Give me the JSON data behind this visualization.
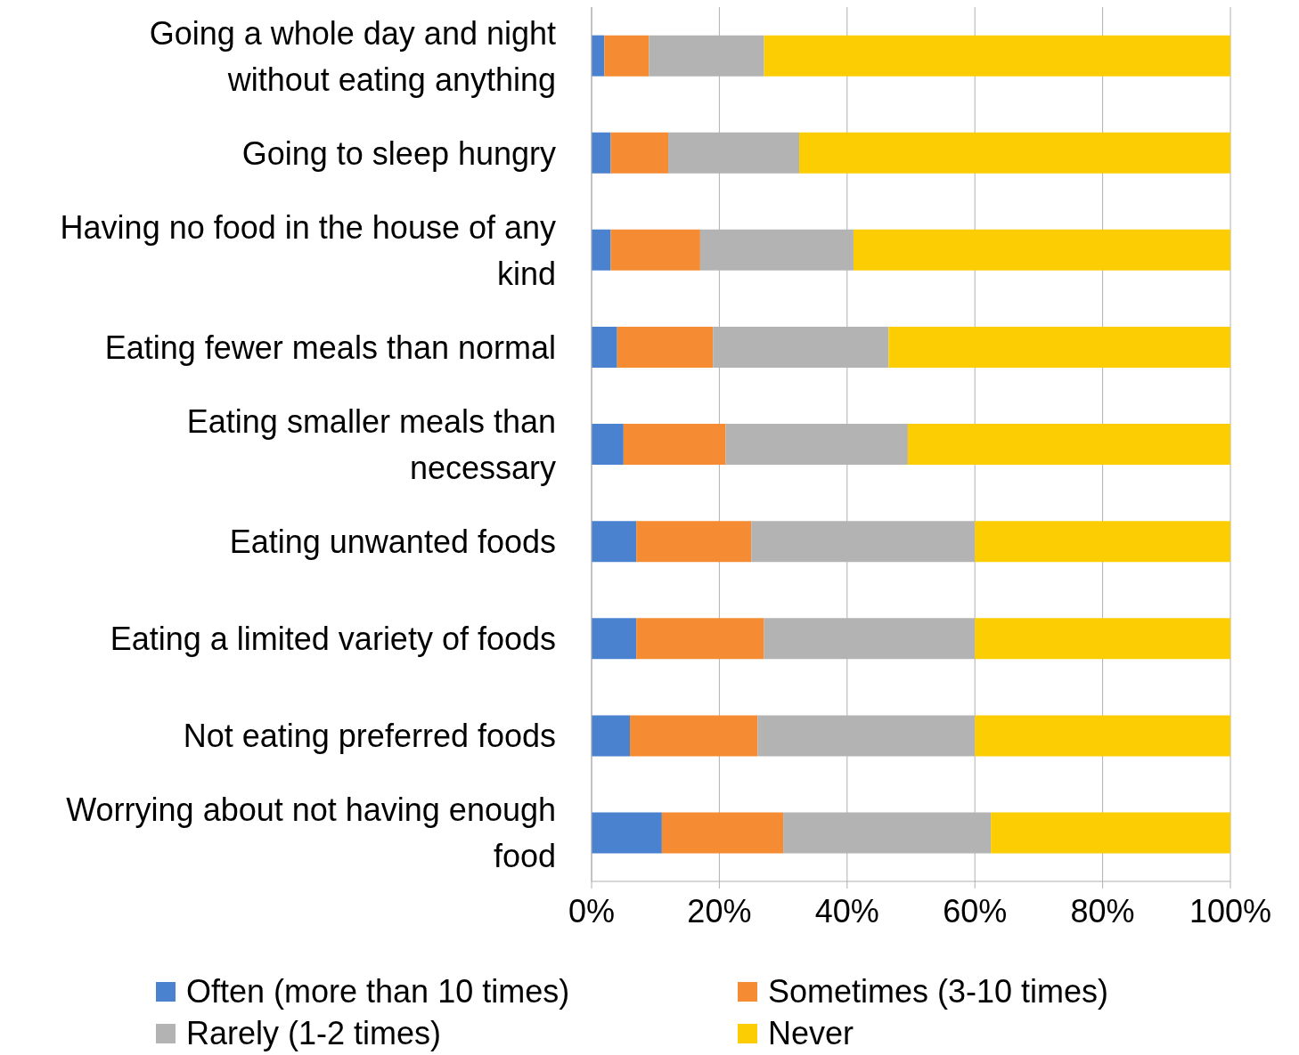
{
  "chart_data": {
    "type": "bar",
    "orientation": "horizontal",
    "stacked": true,
    "categories": [
      "Going a whole day and night without eating anything",
      "Going to sleep hungry",
      "Having no food in the house of any kind",
      "Eating fewer meals than normal",
      "Eating smaller meals than necessary",
      "Eating unwanted foods",
      "Eating a limited variety of foods",
      "Not eating preferred foods",
      "Worrying about not having enough food"
    ],
    "series": [
      {
        "name": "Often (more than 10 times)",
        "color": "#4a82d0",
        "values": [
          2,
          3,
          3,
          4,
          5,
          7,
          7,
          6,
          11
        ]
      },
      {
        "name": "Sometimes (3-10 times)",
        "color": "#f58b32",
        "values": [
          7,
          9,
          14,
          15,
          16,
          18,
          20,
          20,
          19
        ]
      },
      {
        "name": "Rarely (1-2 times)",
        "color": "#b3b3b3",
        "values": [
          18,
          20.5,
          24,
          27.5,
          28.5,
          35,
          33,
          34,
          32.5
        ]
      },
      {
        "name": "Never",
        "color": "#fccd03",
        "values": [
          73,
          67.5,
          59,
          53.5,
          50.5,
          40,
          40,
          40,
          37.5
        ]
      }
    ],
    "xlim": [
      0,
      100
    ],
    "xticks": [
      {
        "value": 0,
        "label": "0%"
      },
      {
        "value": 20,
        "label": "20%"
      },
      {
        "value": 40,
        "label": "40%"
      },
      {
        "value": 60,
        "label": "60%"
      },
      {
        "value": 80,
        "label": "80%"
      },
      {
        "value": 100,
        "label": "100%"
      }
    ],
    "grid": "x",
    "legend": "bottom"
  }
}
